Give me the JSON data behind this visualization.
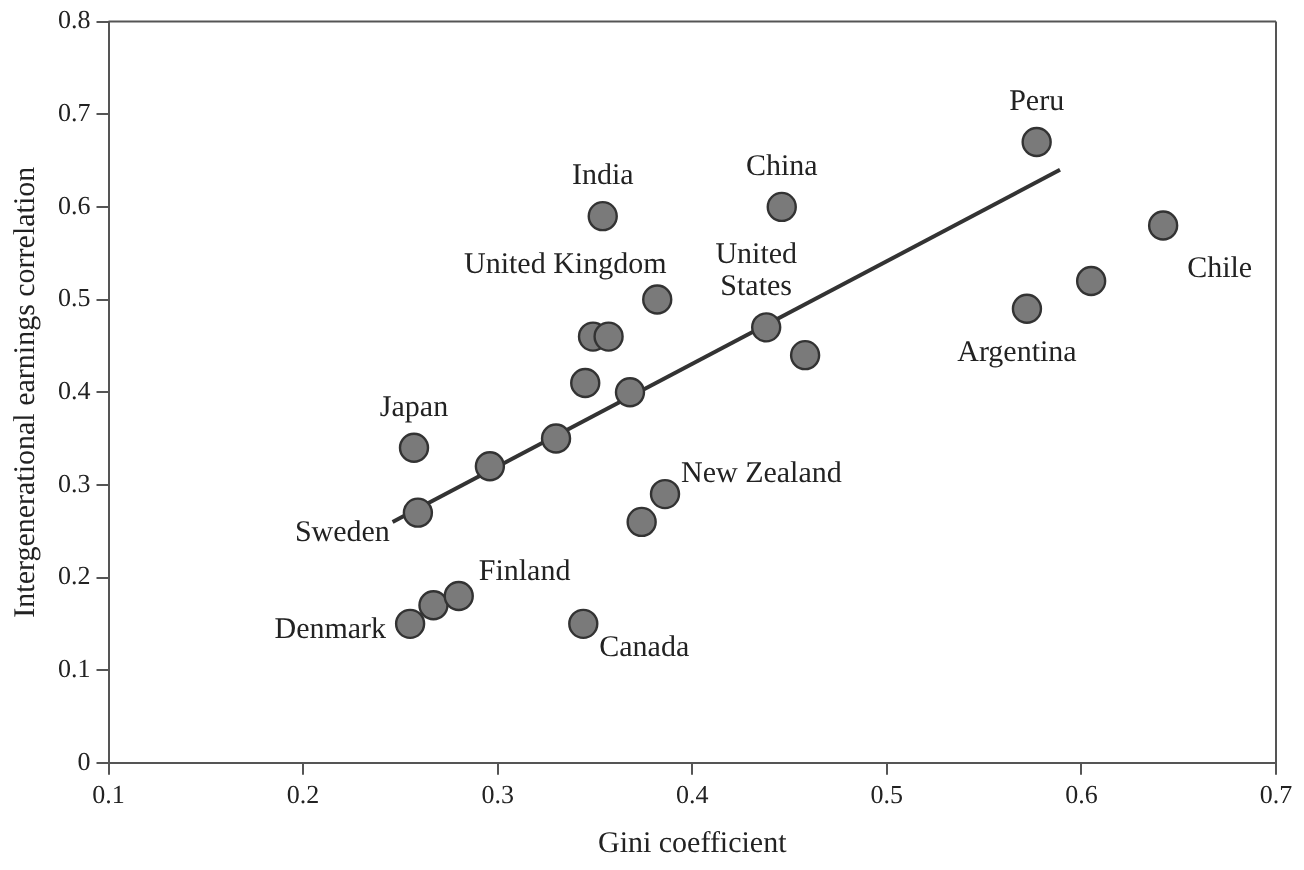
{
  "chart_data": {
    "type": "scatter",
    "xlabel": "Gini coefficient",
    "ylabel": "Intergenerational earnings correlation",
    "xlim": [
      0.1,
      0.7
    ],
    "xticks": [
      0.1,
      0.2,
      0.3,
      0.4,
      0.5,
      0.6,
      0.7
    ],
    "ylim": [
      0,
      0.8
    ],
    "yticks": [
      0,
      0.1,
      0.2,
      0.3,
      0.4,
      0.5,
      0.6,
      0.7,
      0.8
    ],
    "grid": false,
    "legend": false,
    "marker": "circle",
    "series": [
      {
        "color": "#7a7a7a",
        "x": [
          0.257,
          0.259,
          0.255,
          0.267,
          0.28,
          0.296,
          0.33,
          0.345,
          0.368,
          0.349,
          0.357,
          0.382,
          0.354,
          0.374,
          0.386,
          0.344,
          0.438,
          0.446,
          0.458,
          0.577,
          0.642,
          0.605,
          0.572
        ],
        "values": [
          0.34,
          0.27,
          0.15,
          0.17,
          0.18,
          0.32,
          0.35,
          0.41,
          0.4,
          0.46,
          0.46,
          0.5,
          0.59,
          0.26,
          0.29,
          0.15,
          0.47,
          0.6,
          0.44,
          0.67,
          0.58,
          0.52,
          0.49
        ]
      },
      {
        "type": "line",
        "color": "#333333",
        "line_style": "solid",
        "marker": "none",
        "x": [
          0.246,
          0.589
        ],
        "values": [
          0.26,
          0.64
        ]
      }
    ],
    "annotations": [
      {
        "text": "Japan",
        "x": 0.257,
        "y": 0.34
      },
      {
        "text": "Sweden",
        "x": 0.259,
        "y": 0.27
      },
      {
        "text": "Denmark",
        "x": 0.255,
        "y": 0.15
      },
      {
        "text": "Finland",
        "x": 0.28,
        "y": 0.18
      },
      {
        "text": "Canada",
        "x": 0.344,
        "y": 0.15
      },
      {
        "text": "New Zealand",
        "x": 0.386,
        "y": 0.29
      },
      {
        "text": "India",
        "x": 0.354,
        "y": 0.59
      },
      {
        "text": "United Kingdom",
        "x": 0.382,
        "y": 0.5
      },
      {
        "text": "United States",
        "x": 0.438,
        "y": 0.47
      },
      {
        "text": "China",
        "x": 0.446,
        "y": 0.6
      },
      {
        "text": "Peru",
        "x": 0.577,
        "y": 0.67
      },
      {
        "text": "Chile",
        "x": 0.642,
        "y": 0.58
      },
      {
        "text": "Argentina",
        "x": 0.572,
        "y": 0.49
      }
    ]
  }
}
